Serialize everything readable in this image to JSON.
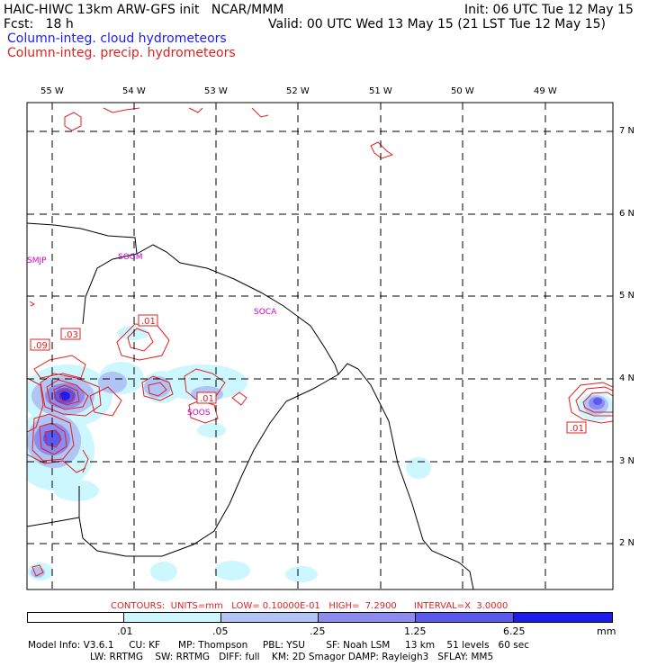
{
  "header": {
    "title": "HAIC-HIWC 13km ARW-GFS init   NCAR/MMM",
    "init": "Init: 06 UTC Tue 12 May 15",
    "fcst": "Fcst:   18 h",
    "valid": "Valid: 00 UTC Wed 13 May 15 (21 LST Tue 12 May 15)",
    "field1": "Column-integ. cloud hydrometeors",
    "field2": "Column-integ. precip. hydrometeors"
  },
  "colors": {
    "cloud_field": "#1a1aff",
    "precip_field": "#e02020",
    "coast": "#000000"
  },
  "lon_labels": [
    "55 W",
    "54 W",
    "53 W",
    "52 W",
    "51 W",
    "50 W",
    "49 W"
  ],
  "lat_labels": [
    "7 N",
    "6 N",
    "5 N",
    "4 N",
    "3 N",
    "2 N"
  ],
  "stations": [
    "SMJP",
    "SOGM",
    "SOCA",
    "SOOS"
  ],
  "contour_labels": [
    ".01",
    ".03",
    ".09",
    ".01",
    ".01"
  ],
  "contour_info": "CONTOURS:  UNITS=mm   LOW= 0.10000E-01   HIGH=  7.2900      INTERVAL=X  3.0000",
  "colorbar": {
    "levels": [
      ".01",
      ".05",
      ".25",
      "1.25",
      "6.25"
    ],
    "unit": "mm",
    "colors": [
      "#ffffff",
      "#ccf7ff",
      "#b0c4f5",
      "#8c8cf0",
      "#5a5af0",
      "#1c1cf0"
    ]
  },
  "model_info": {
    "line1": "Model Info: V3.6.1     CU: KF      MP: Thompson     PBL: YSU       SF: Noah LSM     13 km    51 levels   60 sec",
    "line2": "LW: RRTMG    SW: RRTMG   DIFF: full    KM: 2D Smagor DAMP: Rayleigh3   SFLAY: MM5"
  }
}
